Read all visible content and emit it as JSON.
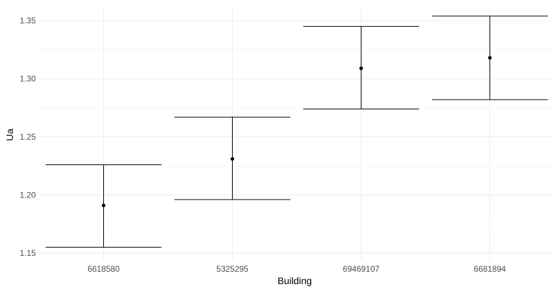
{
  "chart_data": {
    "type": "errorbar",
    "xlabel": "Building",
    "ylabel": "Ua",
    "categories": [
      "6618580",
      "5325295",
      "69469107",
      "6681894"
    ],
    "values": [
      1.191,
      1.231,
      1.309,
      1.318
    ],
    "lower": [
      1.155,
      1.196,
      1.274,
      1.282
    ],
    "upper": [
      1.226,
      1.267,
      1.345,
      1.354
    ],
    "ylim": [
      1.144,
      1.363
    ],
    "yticks": [
      "1.15",
      "1.20",
      "1.25",
      "1.30",
      "1.35"
    ],
    "grid": true,
    "colors": {
      "grid_major": "#ebebeb",
      "grid_minor": "#f4f4f4",
      "mark": "#000000",
      "tick_text": "#4d4d4d"
    }
  }
}
